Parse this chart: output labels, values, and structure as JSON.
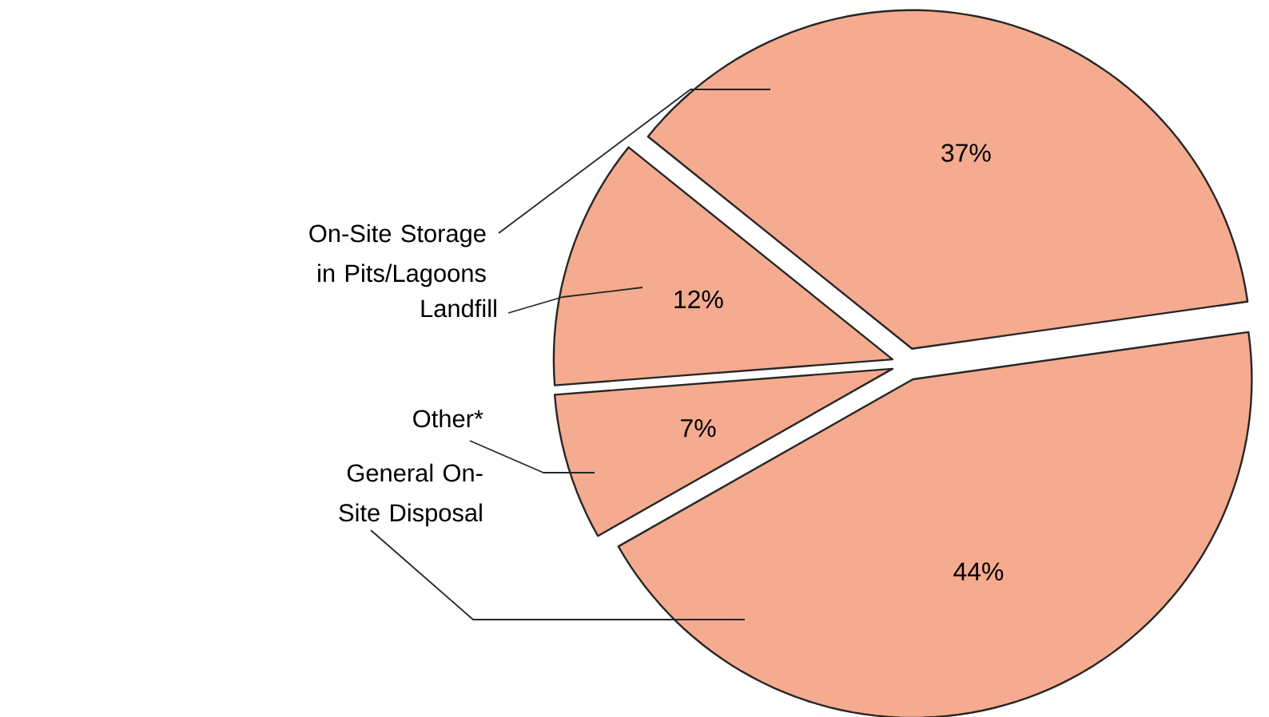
{
  "chart_data": {
    "type": "pie",
    "categories": [
      "On-Site Storage in Pits/Lagoons",
      "Landfill",
      "Other*",
      "General On-Site Disposal"
    ],
    "values": [
      37,
      12,
      7,
      44
    ],
    "value_labels": [
      "37%",
      "12%",
      "7%",
      "44%"
    ],
    "colors": [
      "#f5ab8f",
      "#f5ab8f",
      "#f5ab8f",
      "#f5ab8f"
    ]
  }
}
